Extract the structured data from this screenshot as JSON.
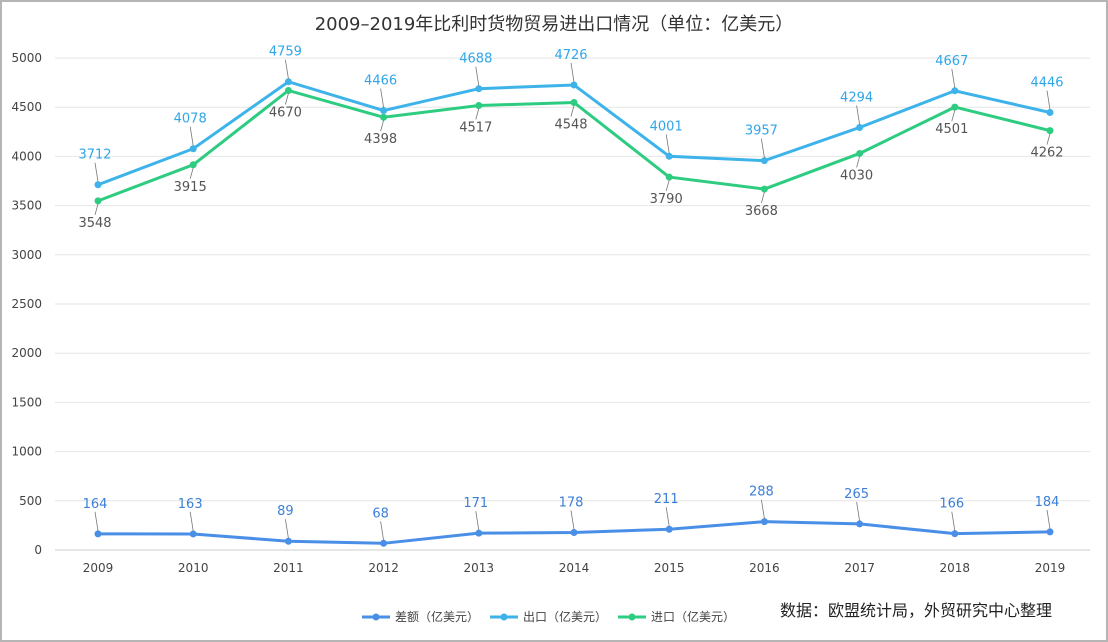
{
  "chart_data": {
    "type": "line",
    "title": "2009–2019年比利时货物贸易进出口情况（单位：亿美元）",
    "x": [
      "2009",
      "2010",
      "2011",
      "2012",
      "2013",
      "2014",
      "2015",
      "2016",
      "2017",
      "2018",
      "2019"
    ],
    "ylim": [
      0,
      5000
    ],
    "yticks": [
      0,
      500,
      1000,
      1500,
      2000,
      2500,
      3000,
      3500,
      4000,
      4500,
      5000
    ],
    "grid": true,
    "legend_position": "bottom",
    "series": [
      {
        "name": "差额（亿美元）",
        "color": "#4a8fe7",
        "label_color": "#3b7fd9",
        "values": [
          164,
          163,
          89,
          68,
          171,
          178,
          211,
          288,
          265,
          166,
          184
        ]
      },
      {
        "name": "出口（亿美元）",
        "color": "#3db3ea",
        "label_color": "#2fa6e8",
        "values": [
          3712,
          4078,
          4759,
          4466,
          4688,
          4726,
          4001,
          3957,
          4294,
          4667,
          4446
        ]
      },
      {
        "name": "进口（亿美元）",
        "color": "#2ecc80",
        "label_color": "#555555",
        "values": [
          3548,
          3915,
          4670,
          4398,
          4517,
          4548,
          3790,
          3668,
          4030,
          4501,
          4262
        ]
      }
    ]
  },
  "source": "数据：欧盟统计局，外贸研究中心整理"
}
